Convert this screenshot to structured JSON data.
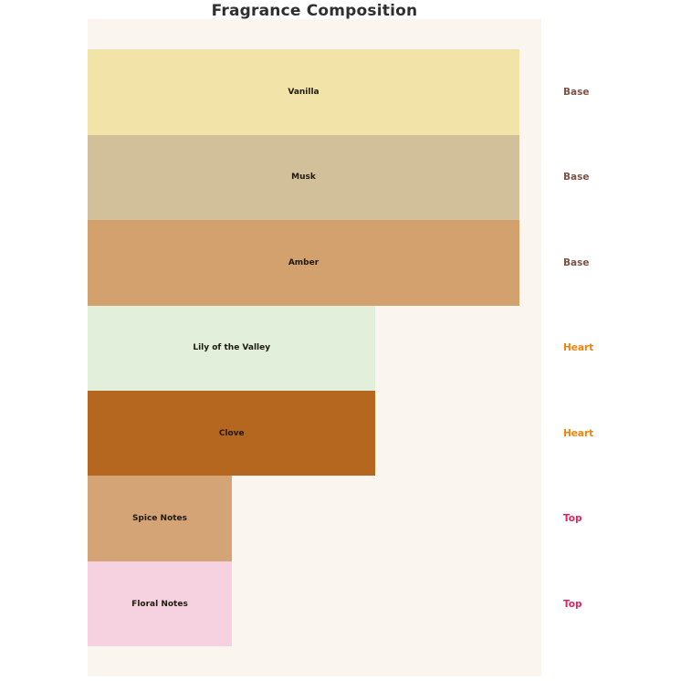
{
  "title": "Fragrance Composition",
  "colors": {
    "page_background": "#ffffff",
    "plot_background": "#faf5ef",
    "title_text": "#2f2f2f",
    "bar_label_text": "#201a0e",
    "group_label_colors": {
      "Base": "#7b5246",
      "Heart": "#f5820b",
      "Top": "#e0235f"
    }
  },
  "chart_data": {
    "type": "bar",
    "orientation": "horizontal",
    "title": "Fragrance Composition",
    "axes_visible": false,
    "grid": false,
    "xlim": [
      0,
      100
    ],
    "value_unit": "percent of widest bar",
    "categories": [
      "Vanilla",
      "Musk",
      "Amber",
      "Lily of the Valley",
      "Clove",
      "Spice Notes",
      "Floral Notes"
    ],
    "bars": [
      {
        "label": "Vanilla",
        "group": "Base",
        "value": 100,
        "color": "#f2e4a8"
      },
      {
        "label": "Musk",
        "group": "Base",
        "value": 100,
        "color": "#d2c09b"
      },
      {
        "label": "Amber",
        "group": "Base",
        "value": 100,
        "color": "#d2a16e"
      },
      {
        "label": "Lily of the Valley",
        "group": "Heart",
        "value": 66.7,
        "color": "#e2efda"
      },
      {
        "label": "Clove",
        "group": "Heart",
        "value": 66.7,
        "color": "#b5661f"
      },
      {
        "label": "Spice Notes",
        "group": "Top",
        "value": 33.4,
        "color": "#d4a477"
      },
      {
        "label": "Floral Notes",
        "group": "Top",
        "value": 33.4,
        "color": "#f6d2e0"
      }
    ],
    "legend_position": "right-of-plot row labels"
  }
}
